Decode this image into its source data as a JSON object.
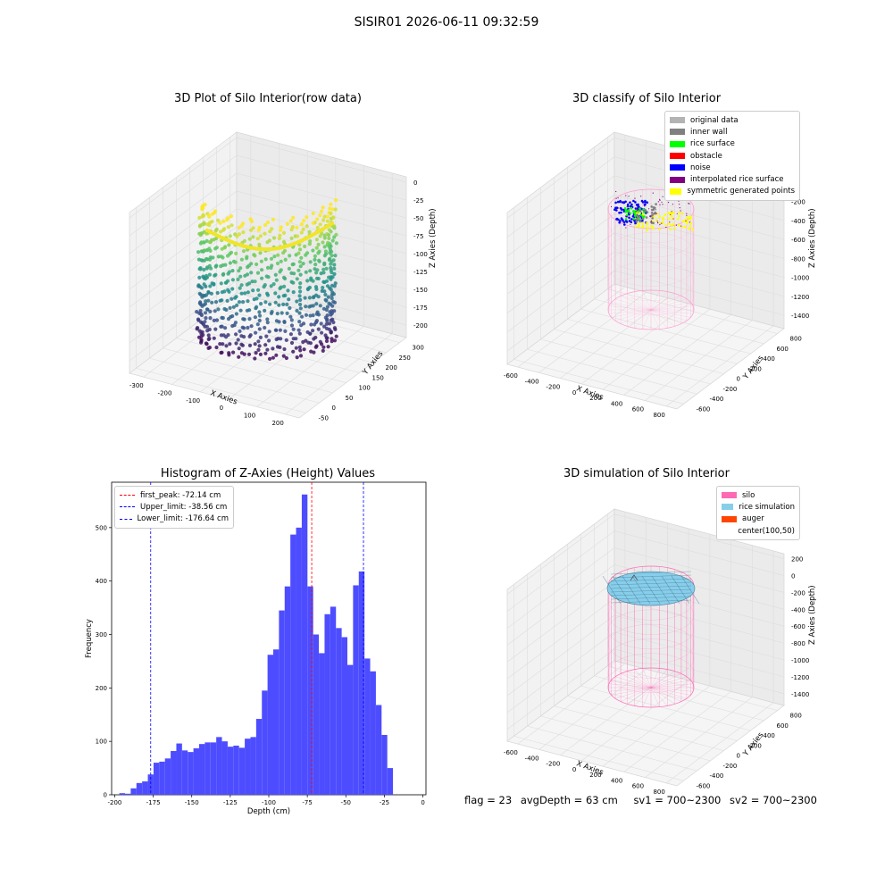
{
  "figure": {
    "suptitle": "SISIR01 2026-06-11 09:32:59",
    "status": {
      "flag": "flag = 23",
      "avg_depth": "avgDepth = 63 cm",
      "sv1": "sv1 = 700~2300",
      "sv2": "sv2 = 700~2300"
    }
  },
  "panels": {
    "raw": {
      "title": "3D Plot of Silo Interior(row data)",
      "xlabel": "X Axies",
      "ylabel": "Y Axies",
      "zlabel": "Z Axies (Depth)",
      "xticks": [
        "-300",
        "-200",
        "-100",
        "0",
        "100",
        "200"
      ],
      "yticks": [
        "-50",
        "0",
        "50",
        "100",
        "150",
        "200",
        "250",
        "300"
      ],
      "zticks": [
        "0",
        "-25",
        "-50",
        "-75",
        "-100",
        "-125",
        "-150",
        "-175",
        "-200"
      ],
      "colormap": "viridis"
    },
    "classify": {
      "title": "3D classify of Silo Interior",
      "xlabel": "X Axies",
      "ylabel": "Y Axies",
      "zlabel": "Z Axies (Depth)",
      "xticks": [
        "-600",
        "-400",
        "-200",
        "0",
        "200",
        "400",
        "600",
        "800"
      ],
      "yticks": [
        "-600",
        "-400",
        "-200",
        "0",
        "200",
        "400",
        "600",
        "800"
      ],
      "zticks": [
        "0",
        "-200",
        "-400",
        "-600",
        "-800",
        "-1000",
        "-1200",
        "-1400"
      ],
      "legend": [
        {
          "label": "original data",
          "color": "#b3b3b3"
        },
        {
          "label": "inner wall",
          "color": "#808080"
        },
        {
          "label": "rice surface",
          "color": "#00ff00"
        },
        {
          "label": "obstacle",
          "color": "#ff0000"
        },
        {
          "label": "noise",
          "color": "#0000ff"
        },
        {
          "label": "interpolated rice surface",
          "color": "#800080"
        },
        {
          "label": "symmetric generated points",
          "color": "#ffff00"
        }
      ]
    },
    "simulation": {
      "title": "3D simulation of Silo Interior",
      "xlabel": "X Axies",
      "ylabel": "Y Axies",
      "zlabel": "Z Axies (Depth)",
      "xticks": [
        "-600",
        "-400",
        "-200",
        "0",
        "200",
        "400",
        "600",
        "800"
      ],
      "yticks": [
        "-600",
        "-400",
        "-200",
        "0",
        "200",
        "400",
        "600",
        "800"
      ],
      "zticks": [
        "200",
        "0",
        "-200",
        "-400",
        "-600",
        "-800",
        "-1000",
        "-1200",
        "-1400"
      ],
      "legend": [
        {
          "label": "silo",
          "color": "#ff69b4"
        },
        {
          "label": "rice simulation",
          "color": "#87ceeb"
        },
        {
          "label": "auger",
          "color": "#ff4500"
        },
        {
          "label": "center(100,50)",
          "color": ""
        }
      ]
    }
  },
  "chart_data": {
    "type": "bar",
    "title": "Histogram of Z-Axies (Height) Values",
    "xlabel": "Depth (cm)",
    "ylabel": "Frequency",
    "xlim": [
      -202,
      2
    ],
    "ylim": [
      0,
      585
    ],
    "xticks": [
      -200,
      -175,
      -150,
      -125,
      -100,
      -75,
      -50,
      -25,
      0
    ],
    "yticks": [
      0,
      100,
      200,
      300,
      400,
      500
    ],
    "bin_edges_start": -197,
    "bin_width": 3.7,
    "values": [
      3,
      2,
      12,
      22,
      25,
      38,
      60,
      62,
      68,
      82,
      96,
      83,
      80,
      87,
      95,
      98,
      98,
      108,
      100,
      90,
      92,
      88,
      105,
      108,
      142,
      195,
      262,
      272,
      345,
      390,
      487,
      500,
      562,
      390,
      300,
      265,
      338,
      352,
      312,
      295,
      243,
      392,
      418,
      255,
      231,
      168,
      112,
      50
    ],
    "bar_color": "#4d4dff",
    "vlines": [
      {
        "label": "first_peak: -72.14 cm",
        "x": -72.14,
        "color": "#ff0000"
      },
      {
        "label": "Upper_limit: -38.56 cm",
        "x": -38.56,
        "color": "#0000ff"
      },
      {
        "label": "Lower_limit: -176.64 cm",
        "x": -176.64,
        "color": "#0000ff"
      }
    ],
    "legend_position": "upper-left"
  }
}
